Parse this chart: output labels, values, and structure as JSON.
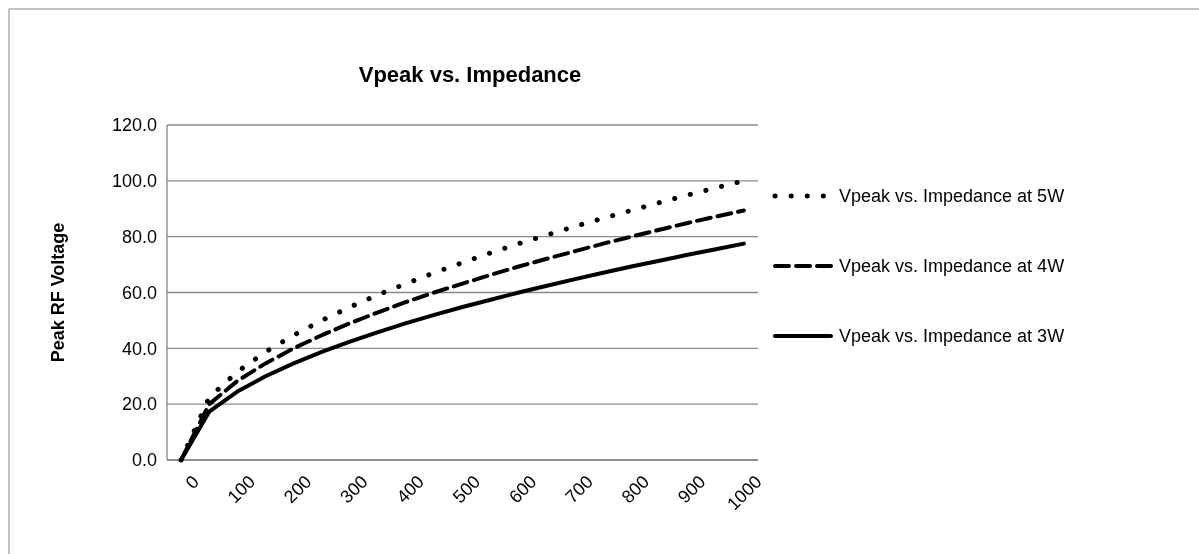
{
  "chart_data": {
    "type": "line",
    "title": "Vpeak vs. Impedance",
    "ylabel": "Peak RF Voltage",
    "categories": [
      "0",
      null,
      "100",
      null,
      "200",
      null,
      "300",
      null,
      "400",
      null,
      "500",
      null,
      "600",
      null,
      "700",
      null,
      "800",
      null,
      "900",
      null,
      "1000"
    ],
    "ylim": [
      0,
      120
    ],
    "yticks": [
      {
        "value": 0,
        "label": "0.0"
      },
      {
        "value": 20,
        "label": "20.0"
      },
      {
        "value": 40,
        "label": "40.0"
      },
      {
        "value": 60,
        "label": "60.0"
      },
      {
        "value": 80,
        "label": "80.0"
      },
      {
        "value": 100,
        "label": "100.0"
      },
      {
        "value": 120,
        "label": "120.0"
      }
    ],
    "grid": "y",
    "legend": "right",
    "series": [
      {
        "name": "Vpeak vs. Impedance at 5W",
        "color": "#000000",
        "line_style": "dotted",
        "values": [
          0,
          22.4,
          31.6,
          38.7,
          44.7,
          50,
          54.8,
          59.2,
          63.2,
          67.1,
          70.7,
          74.2,
          77.5,
          80.6,
          83.7,
          86.6,
          89.4,
          92.2,
          94.9,
          97.5,
          100
        ]
      },
      {
        "name": "Vpeak vs. Impedance at 4W",
        "color": "#000000",
        "line_style": "dashed",
        "values": [
          0,
          20,
          28.3,
          34.6,
          40,
          44.7,
          49,
          52.9,
          56.6,
          60,
          63.2,
          66.3,
          69.3,
          72.1,
          74.8,
          77.5,
          80,
          82.5,
          84.9,
          87.2,
          89.4
        ]
      },
      {
        "name": "Vpeak vs. Impedance at 3W",
        "color": "#000000",
        "line_style": "solid",
        "values": [
          0,
          17.3,
          24.5,
          30,
          34.6,
          38.7,
          42.4,
          45.8,
          49,
          52,
          54.8,
          57.4,
          60,
          62.4,
          64.8,
          67.1,
          69.3,
          71.4,
          73.5,
          75.5,
          77.5
        ]
      }
    ]
  }
}
